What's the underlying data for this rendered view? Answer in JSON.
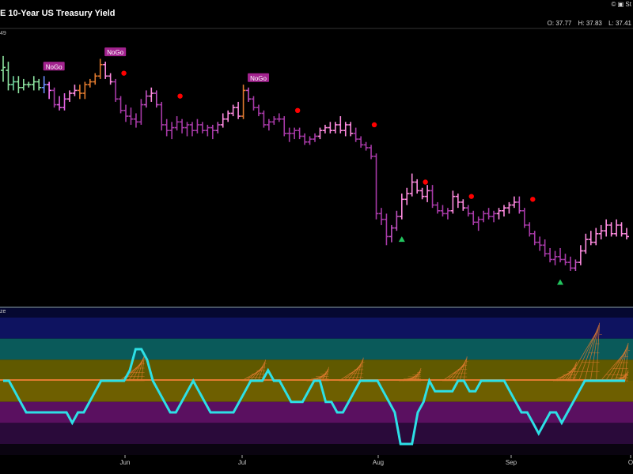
{
  "header": {
    "title": "E 10-Year US Treasury Yield",
    "sub": "49",
    "copyright": "© ▣ St",
    "ohlc": {
      "o": "O: 37.77",
      "h": "H: 37.83",
      "l": "L: 37.41"
    }
  },
  "oscillator": {
    "label": "ze"
  },
  "chart_data": {
    "type": "line",
    "title": "E 10-Year US Treasury Yield",
    "xlabel": "",
    "ylabel": "",
    "x_ticks": [
      "Jun",
      "Jul",
      "Aug",
      "Sep",
      "O"
    ],
    "price_range": [
      36.6,
      45.2
    ],
    "price_bars": [
      {
        "o": 44.4,
        "h": 44.9,
        "l": 44.0,
        "c": 44.5,
        "color": "#8ee5a1"
      },
      {
        "o": 44.4,
        "h": 44.7,
        "l": 43.7,
        "c": 43.9,
        "color": "#8ee5a1"
      },
      {
        "o": 43.9,
        "h": 44.2,
        "l": 43.7,
        "c": 44.0,
        "color": "#6fd6a0"
      },
      {
        "o": 44.0,
        "h": 44.2,
        "l": 43.6,
        "c": 43.8,
        "color": "#8ee5a1"
      },
      {
        "o": 43.8,
        "h": 44.1,
        "l": 43.7,
        "c": 43.9,
        "color": "#8ee5a1"
      },
      {
        "o": 43.9,
        "h": 44.0,
        "l": 43.8,
        "c": 43.9,
        "color": "#8ee5a1"
      },
      {
        "o": 43.9,
        "h": 44.2,
        "l": 43.7,
        "c": 44.0,
        "color": "#8ee5a1"
      },
      {
        "o": 44.0,
        "h": 44.1,
        "l": 43.7,
        "c": 43.8,
        "color": "#8ee5a1"
      },
      {
        "o": 43.8,
        "h": 44.2,
        "l": 43.6,
        "c": 43.9,
        "color": "#6a8dff"
      },
      {
        "o": 43.9,
        "h": 44.0,
        "l": 43.4,
        "c": 43.7,
        "color": "#ff79ff"
      },
      {
        "o": 43.7,
        "h": 43.8,
        "l": 43.1,
        "c": 43.2,
        "color": "#a83aa8"
      },
      {
        "o": 43.2,
        "h": 43.5,
        "l": 43.0,
        "c": 43.1,
        "color": "#e060e0"
      },
      {
        "o": 43.1,
        "h": 43.6,
        "l": 43.0,
        "c": 43.4,
        "color": "#e060e0"
      },
      {
        "o": 43.4,
        "h": 43.7,
        "l": 43.3,
        "c": 43.6,
        "color": "#ff8be0"
      },
      {
        "o": 43.6,
        "h": 43.9,
        "l": 43.5,
        "c": 43.7,
        "color": "#ff8be0"
      },
      {
        "o": 43.7,
        "h": 43.9,
        "l": 43.4,
        "c": 43.6,
        "color": "#e27b2f"
      },
      {
        "o": 43.6,
        "h": 44.0,
        "l": 43.4,
        "c": 43.9,
        "color": "#e27b2f"
      },
      {
        "o": 43.9,
        "h": 44.1,
        "l": 43.8,
        "c": 44.0,
        "color": "#e27b2f"
      },
      {
        "o": 44.0,
        "h": 44.3,
        "l": 43.9,
        "c": 44.2,
        "color": "#e27b2f"
      },
      {
        "o": 44.2,
        "h": 44.8,
        "l": 44.1,
        "c": 44.6,
        "color": "#e27b2f"
      },
      {
        "o": 44.6,
        "h": 44.7,
        "l": 44.1,
        "c": 44.2,
        "color": "#ff8be0"
      },
      {
        "o": 44.2,
        "h": 44.3,
        "l": 43.9,
        "c": 44.0,
        "color": "#ff8be0"
      },
      {
        "o": 44.0,
        "h": 44.1,
        "l": 43.3,
        "c": 43.4,
        "color": "#a83aa8"
      },
      {
        "o": 43.4,
        "h": 43.5,
        "l": 42.9,
        "c": 43.0,
        "color": "#a83aa8"
      },
      {
        "o": 43.0,
        "h": 43.2,
        "l": 42.6,
        "c": 42.8,
        "color": "#a83aa8"
      },
      {
        "o": 42.8,
        "h": 43.1,
        "l": 42.5,
        "c": 42.7,
        "color": "#a83aa8"
      },
      {
        "o": 42.7,
        "h": 42.9,
        "l": 42.4,
        "c": 42.6,
        "color": "#a83aa8"
      },
      {
        "o": 42.6,
        "h": 43.4,
        "l": 42.5,
        "c": 43.2,
        "color": "#a83aa8"
      },
      {
        "o": 43.2,
        "h": 43.7,
        "l": 43.1,
        "c": 43.5,
        "color": "#c050c0"
      },
      {
        "o": 43.5,
        "h": 43.8,
        "l": 43.3,
        "c": 43.6,
        "color": "#ff8be0"
      },
      {
        "o": 43.6,
        "h": 43.7,
        "l": 43.1,
        "c": 43.2,
        "color": "#c050c0"
      },
      {
        "o": 43.2,
        "h": 43.3,
        "l": 42.3,
        "c": 42.5,
        "color": "#a83aa8"
      },
      {
        "o": 42.5,
        "h": 42.7,
        "l": 42.1,
        "c": 42.3,
        "color": "#a83aa8"
      },
      {
        "o": 42.3,
        "h": 42.6,
        "l": 42.0,
        "c": 42.4,
        "color": "#a83aa8"
      },
      {
        "o": 42.4,
        "h": 42.8,
        "l": 42.3,
        "c": 42.6,
        "color": "#a83aa8"
      },
      {
        "o": 42.6,
        "h": 42.7,
        "l": 42.2,
        "c": 42.4,
        "color": "#a83aa8"
      },
      {
        "o": 42.4,
        "h": 42.6,
        "l": 42.1,
        "c": 42.5,
        "color": "#a83aa8"
      },
      {
        "o": 42.5,
        "h": 42.6,
        "l": 42.1,
        "c": 42.3,
        "color": "#a83aa8"
      },
      {
        "o": 42.3,
        "h": 42.7,
        "l": 42.2,
        "c": 42.5,
        "color": "#a83aa8"
      },
      {
        "o": 42.5,
        "h": 42.6,
        "l": 42.2,
        "c": 42.3,
        "color": "#a83aa8"
      },
      {
        "o": 42.3,
        "h": 42.5,
        "l": 42.1,
        "c": 42.4,
        "color": "#a83aa8"
      },
      {
        "o": 42.4,
        "h": 42.5,
        "l": 42.0,
        "c": 42.3,
        "color": "#a83aa8"
      },
      {
        "o": 42.3,
        "h": 42.6,
        "l": 42.2,
        "c": 42.5,
        "color": "#c050c0"
      },
      {
        "o": 42.5,
        "h": 42.9,
        "l": 42.4,
        "c": 42.7,
        "color": "#ff8be0"
      },
      {
        "o": 42.7,
        "h": 43.0,
        "l": 42.6,
        "c": 42.9,
        "color": "#ff8be0"
      },
      {
        "o": 42.9,
        "h": 43.2,
        "l": 42.8,
        "c": 43.1,
        "color": "#ff8be0"
      },
      {
        "o": 43.1,
        "h": 43.3,
        "l": 42.7,
        "c": 42.8,
        "color": "#ff8be0"
      },
      {
        "o": 42.8,
        "h": 43.9,
        "l": 42.7,
        "c": 43.7,
        "color": "#e27b2f"
      },
      {
        "o": 43.7,
        "h": 43.8,
        "l": 43.3,
        "c": 43.4,
        "color": "#c050c0"
      },
      {
        "o": 43.4,
        "h": 43.5,
        "l": 43.0,
        "c": 43.1,
        "color": "#a83aa8"
      },
      {
        "o": 43.1,
        "h": 43.2,
        "l": 42.8,
        "c": 42.9,
        "color": "#a83aa8"
      },
      {
        "o": 42.9,
        "h": 43.0,
        "l": 42.4,
        "c": 42.5,
        "color": "#a83aa8"
      },
      {
        "o": 42.5,
        "h": 42.7,
        "l": 42.3,
        "c": 42.6,
        "color": "#a83aa8"
      },
      {
        "o": 42.6,
        "h": 42.8,
        "l": 42.5,
        "c": 42.7,
        "color": "#a83aa8"
      },
      {
        "o": 42.7,
        "h": 42.9,
        "l": 42.6,
        "c": 42.7,
        "color": "#a83aa8"
      },
      {
        "o": 42.7,
        "h": 42.8,
        "l": 42.1,
        "c": 42.2,
        "color": "#a83aa8"
      },
      {
        "o": 42.2,
        "h": 42.4,
        "l": 41.9,
        "c": 42.2,
        "color": "#a83aa8"
      },
      {
        "o": 42.2,
        "h": 42.4,
        "l": 42.0,
        "c": 42.3,
        "color": "#a83aa8"
      },
      {
        "o": 42.3,
        "h": 42.4,
        "l": 42.0,
        "c": 42.1,
        "color": "#a83aa8"
      },
      {
        "o": 42.1,
        "h": 42.2,
        "l": 41.8,
        "c": 41.9,
        "color": "#a83aa8"
      },
      {
        "o": 41.9,
        "h": 42.1,
        "l": 41.8,
        "c": 42.0,
        "color": "#a83aa8"
      },
      {
        "o": 42.0,
        "h": 42.2,
        "l": 41.9,
        "c": 42.1,
        "color": "#a83aa8"
      },
      {
        "o": 42.1,
        "h": 42.4,
        "l": 42.0,
        "c": 42.3,
        "color": "#ff8be0"
      },
      {
        "o": 42.3,
        "h": 42.5,
        "l": 42.2,
        "c": 42.4,
        "color": "#ff8be0"
      },
      {
        "o": 42.4,
        "h": 42.6,
        "l": 42.2,
        "c": 42.3,
        "color": "#ff8be0"
      },
      {
        "o": 42.3,
        "h": 42.6,
        "l": 42.2,
        "c": 42.5,
        "color": "#ff8be0"
      },
      {
        "o": 42.5,
        "h": 42.8,
        "l": 42.2,
        "c": 42.3,
        "color": "#ff8be0"
      },
      {
        "o": 42.3,
        "h": 42.6,
        "l": 42.1,
        "c": 42.5,
        "color": "#ff8be0"
      },
      {
        "o": 42.5,
        "h": 42.6,
        "l": 42.1,
        "c": 42.2,
        "color": "#ff8be0"
      },
      {
        "o": 42.2,
        "h": 42.4,
        "l": 41.9,
        "c": 42.0,
        "color": "#a83aa8"
      },
      {
        "o": 42.0,
        "h": 42.1,
        "l": 41.7,
        "c": 41.8,
        "color": "#a83aa8"
      },
      {
        "o": 41.8,
        "h": 41.9,
        "l": 41.6,
        "c": 41.7,
        "color": "#a83aa8"
      },
      {
        "o": 41.7,
        "h": 41.8,
        "l": 41.3,
        "c": 41.4,
        "color": "#a83aa8"
      },
      {
        "o": 41.4,
        "h": 41.5,
        "l": 39.2,
        "c": 39.4,
        "color": "#a83aa8"
      },
      {
        "o": 39.4,
        "h": 39.6,
        "l": 39.0,
        "c": 39.2,
        "color": "#a83aa8"
      },
      {
        "o": 39.2,
        "h": 39.4,
        "l": 38.3,
        "c": 38.6,
        "color": "#a83aa8"
      },
      {
        "o": 38.6,
        "h": 39.0,
        "l": 38.4,
        "c": 38.9,
        "color": "#c050c0"
      },
      {
        "o": 38.9,
        "h": 39.5,
        "l": 38.8,
        "c": 39.3,
        "color": "#c050c0"
      },
      {
        "o": 39.3,
        "h": 40.1,
        "l": 39.2,
        "c": 39.9,
        "color": "#ff8be0"
      },
      {
        "o": 39.9,
        "h": 40.3,
        "l": 39.7,
        "c": 40.1,
        "color": "#ff8be0"
      },
      {
        "o": 40.1,
        "h": 40.8,
        "l": 40.0,
        "c": 40.5,
        "color": "#ff8be0"
      },
      {
        "o": 40.5,
        "h": 40.6,
        "l": 40.1,
        "c": 40.2,
        "color": "#ff8be0"
      },
      {
        "o": 40.2,
        "h": 40.3,
        "l": 39.9,
        "c": 40.0,
        "color": "#ff8be0"
      },
      {
        "o": 40.0,
        "h": 40.4,
        "l": 39.8,
        "c": 40.2,
        "color": "#ff8be0"
      },
      {
        "o": 40.2,
        "h": 40.4,
        "l": 39.6,
        "c": 39.7,
        "color": "#a83aa8"
      },
      {
        "o": 39.7,
        "h": 39.8,
        "l": 39.4,
        "c": 39.5,
        "color": "#a83aa8"
      },
      {
        "o": 39.5,
        "h": 39.7,
        "l": 39.3,
        "c": 39.4,
        "color": "#a83aa8"
      },
      {
        "o": 39.4,
        "h": 39.6,
        "l": 39.2,
        "c": 39.5,
        "color": "#a83aa8"
      },
      {
        "o": 39.5,
        "h": 40.2,
        "l": 39.4,
        "c": 40.0,
        "color": "#ff8be0"
      },
      {
        "o": 40.0,
        "h": 40.1,
        "l": 39.6,
        "c": 39.8,
        "color": "#ff8be0"
      },
      {
        "o": 39.8,
        "h": 39.9,
        "l": 39.5,
        "c": 39.6,
        "color": "#ff8be0"
      },
      {
        "o": 39.6,
        "h": 39.7,
        "l": 39.3,
        "c": 39.4,
        "color": "#a83aa8"
      },
      {
        "o": 39.4,
        "h": 39.5,
        "l": 39.0,
        "c": 39.1,
        "color": "#a83aa8"
      },
      {
        "o": 39.1,
        "h": 39.3,
        "l": 38.8,
        "c": 39.2,
        "color": "#a83aa8"
      },
      {
        "o": 39.2,
        "h": 39.5,
        "l": 39.1,
        "c": 39.4,
        "color": "#a83aa8"
      },
      {
        "o": 39.4,
        "h": 39.6,
        "l": 39.2,
        "c": 39.3,
        "color": "#a83aa8"
      },
      {
        "o": 39.3,
        "h": 39.5,
        "l": 39.1,
        "c": 39.4,
        "color": "#a83aa8"
      },
      {
        "o": 39.4,
        "h": 39.6,
        "l": 39.2,
        "c": 39.5,
        "color": "#ff8be0"
      },
      {
        "o": 39.5,
        "h": 39.7,
        "l": 39.3,
        "c": 39.6,
        "color": "#ff8be0"
      },
      {
        "o": 39.6,
        "h": 39.8,
        "l": 39.4,
        "c": 39.7,
        "color": "#ff8be0"
      },
      {
        "o": 39.7,
        "h": 40.0,
        "l": 39.6,
        "c": 39.8,
        "color": "#ff8be0"
      },
      {
        "o": 39.8,
        "h": 40.0,
        "l": 39.4,
        "c": 39.5,
        "color": "#c050c0"
      },
      {
        "o": 39.5,
        "h": 39.6,
        "l": 38.9,
        "c": 39.0,
        "color": "#a83aa8"
      },
      {
        "o": 39.0,
        "h": 39.1,
        "l": 38.6,
        "c": 38.7,
        "color": "#a83aa8"
      },
      {
        "o": 38.7,
        "h": 38.8,
        "l": 38.3,
        "c": 38.4,
        "color": "#a83aa8"
      },
      {
        "o": 38.4,
        "h": 38.6,
        "l": 38.1,
        "c": 38.3,
        "color": "#a83aa8"
      },
      {
        "o": 38.3,
        "h": 38.5,
        "l": 37.9,
        "c": 38.0,
        "color": "#a83aa8"
      },
      {
        "o": 38.0,
        "h": 38.2,
        "l": 37.7,
        "c": 37.8,
        "color": "#a83aa8"
      },
      {
        "o": 37.8,
        "h": 38.1,
        "l": 37.6,
        "c": 37.9,
        "color": "#a83aa8"
      },
      {
        "o": 37.9,
        "h": 38.2,
        "l": 37.7,
        "c": 37.8,
        "color": "#a83aa8"
      },
      {
        "o": 37.8,
        "h": 38.0,
        "l": 37.6,
        "c": 37.7,
        "color": "#a83aa8"
      },
      {
        "o": 37.7,
        "h": 37.9,
        "l": 37.4,
        "c": 37.5,
        "color": "#a83aa8"
      },
      {
        "o": 37.5,
        "h": 37.8,
        "l": 37.4,
        "c": 37.7,
        "color": "#c050c0"
      },
      {
        "o": 37.7,
        "h": 38.3,
        "l": 37.6,
        "c": 38.1,
        "color": "#ff8be0"
      },
      {
        "o": 38.1,
        "h": 38.7,
        "l": 38.0,
        "c": 38.5,
        "color": "#ff8be0"
      },
      {
        "o": 38.5,
        "h": 38.8,
        "l": 38.3,
        "c": 38.4,
        "color": "#ff8be0"
      },
      {
        "o": 38.4,
        "h": 38.9,
        "l": 38.3,
        "c": 38.7,
        "color": "#ff8be0"
      },
      {
        "o": 38.7,
        "h": 39.0,
        "l": 38.5,
        "c": 38.8,
        "color": "#ff8be0"
      },
      {
        "o": 38.8,
        "h": 39.2,
        "l": 38.6,
        "c": 39.0,
        "color": "#ff8be0"
      },
      {
        "o": 39.0,
        "h": 39.1,
        "l": 38.6,
        "c": 38.7,
        "color": "#ff8be0"
      },
      {
        "o": 38.7,
        "h": 39.2,
        "l": 38.6,
        "c": 39.0,
        "color": "#ff8be0"
      },
      {
        "o": 39.0,
        "h": 39.1,
        "l": 38.6,
        "c": 38.7,
        "color": "#ff8be0"
      },
      {
        "o": 38.7,
        "h": 38.9,
        "l": 38.5,
        "c": 38.6,
        "color": "#ff8be0"
      }
    ],
    "nogo_labels": [
      {
        "bar": 8,
        "text": "NoGo"
      },
      {
        "bar": 20,
        "text": "NoGo"
      },
      {
        "bar": 48,
        "text": "NoGo"
      }
    ],
    "countertrend_dots": [
      {
        "bar": 23,
        "value": 44.3,
        "color": "#ff0000"
      },
      {
        "bar": 34,
        "value": 43.5,
        "color": "#ff0000"
      },
      {
        "bar": 57,
        "value": 43.0,
        "color": "#ff0000"
      },
      {
        "bar": 72,
        "value": 42.5,
        "color": "#ff0000"
      },
      {
        "bar": 82,
        "value": 40.5,
        "color": "#ff0000"
      },
      {
        "bar": 91,
        "value": 40.0,
        "color": "#ff0000"
      },
      {
        "bar": 103,
        "value": 39.9,
        "color": "#ff0000"
      }
    ],
    "green_triangles": [
      {
        "bar": 78,
        "value": 38.5,
        "color": "#22c55e"
      },
      {
        "bar": 109,
        "value": 37.0,
        "color": "#22c55e"
      }
    ],
    "oscillator_range": [
      -6,
      6
    ],
    "oscillator_zones": [
      {
        "from": 4,
        "to": 6,
        "color": "#0e1360"
      },
      {
        "from": 2,
        "to": 4,
        "color": "#0a5a5a"
      },
      {
        "from": 0,
        "to": 2,
        "color": "#605900"
      },
      {
        "from": -2,
        "to": 0,
        "color": "#6e5f00"
      },
      {
        "from": -4,
        "to": -2,
        "color": "#5a1060"
      },
      {
        "from": -6,
        "to": -4,
        "color": "#2a0a3a"
      }
    ],
    "oscillator": [
      0,
      0,
      -1,
      -2,
      -3,
      -3,
      -3,
      -3,
      -3,
      -3,
      -3,
      -3,
      -4,
      -3,
      -3,
      -2,
      -1,
      0,
      0,
      0,
      0,
      0,
      1,
      3,
      3,
      2,
      0,
      -1,
      -2,
      -3,
      -3,
      -2,
      -1,
      0,
      -1,
      -2,
      -3,
      -3,
      -3,
      -3,
      -3,
      -2,
      -1,
      0,
      0,
      0,
      1,
      0,
      0,
      -1,
      -2,
      -2,
      -2,
      -1,
      0,
      0,
      -2,
      -2,
      -3,
      -3,
      -2,
      -1,
      0,
      0,
      0,
      0,
      -1,
      -2,
      -3,
      -6,
      -6,
      -6,
      -3,
      -2,
      0,
      -1,
      -1,
      -1,
      -1,
      0,
      0,
      -1,
      -1,
      0,
      0,
      0,
      0,
      0,
      -1,
      -2,
      -3,
      -3,
      -4,
      -5,
      -4,
      -3,
      -3,
      -4,
      -3,
      -2,
      -1,
      0,
      0,
      0,
      0,
      0,
      0,
      0,
      0
    ],
    "zero_line_color": "#e27b2f",
    "oscillator_color": "#2de0e6"
  }
}
